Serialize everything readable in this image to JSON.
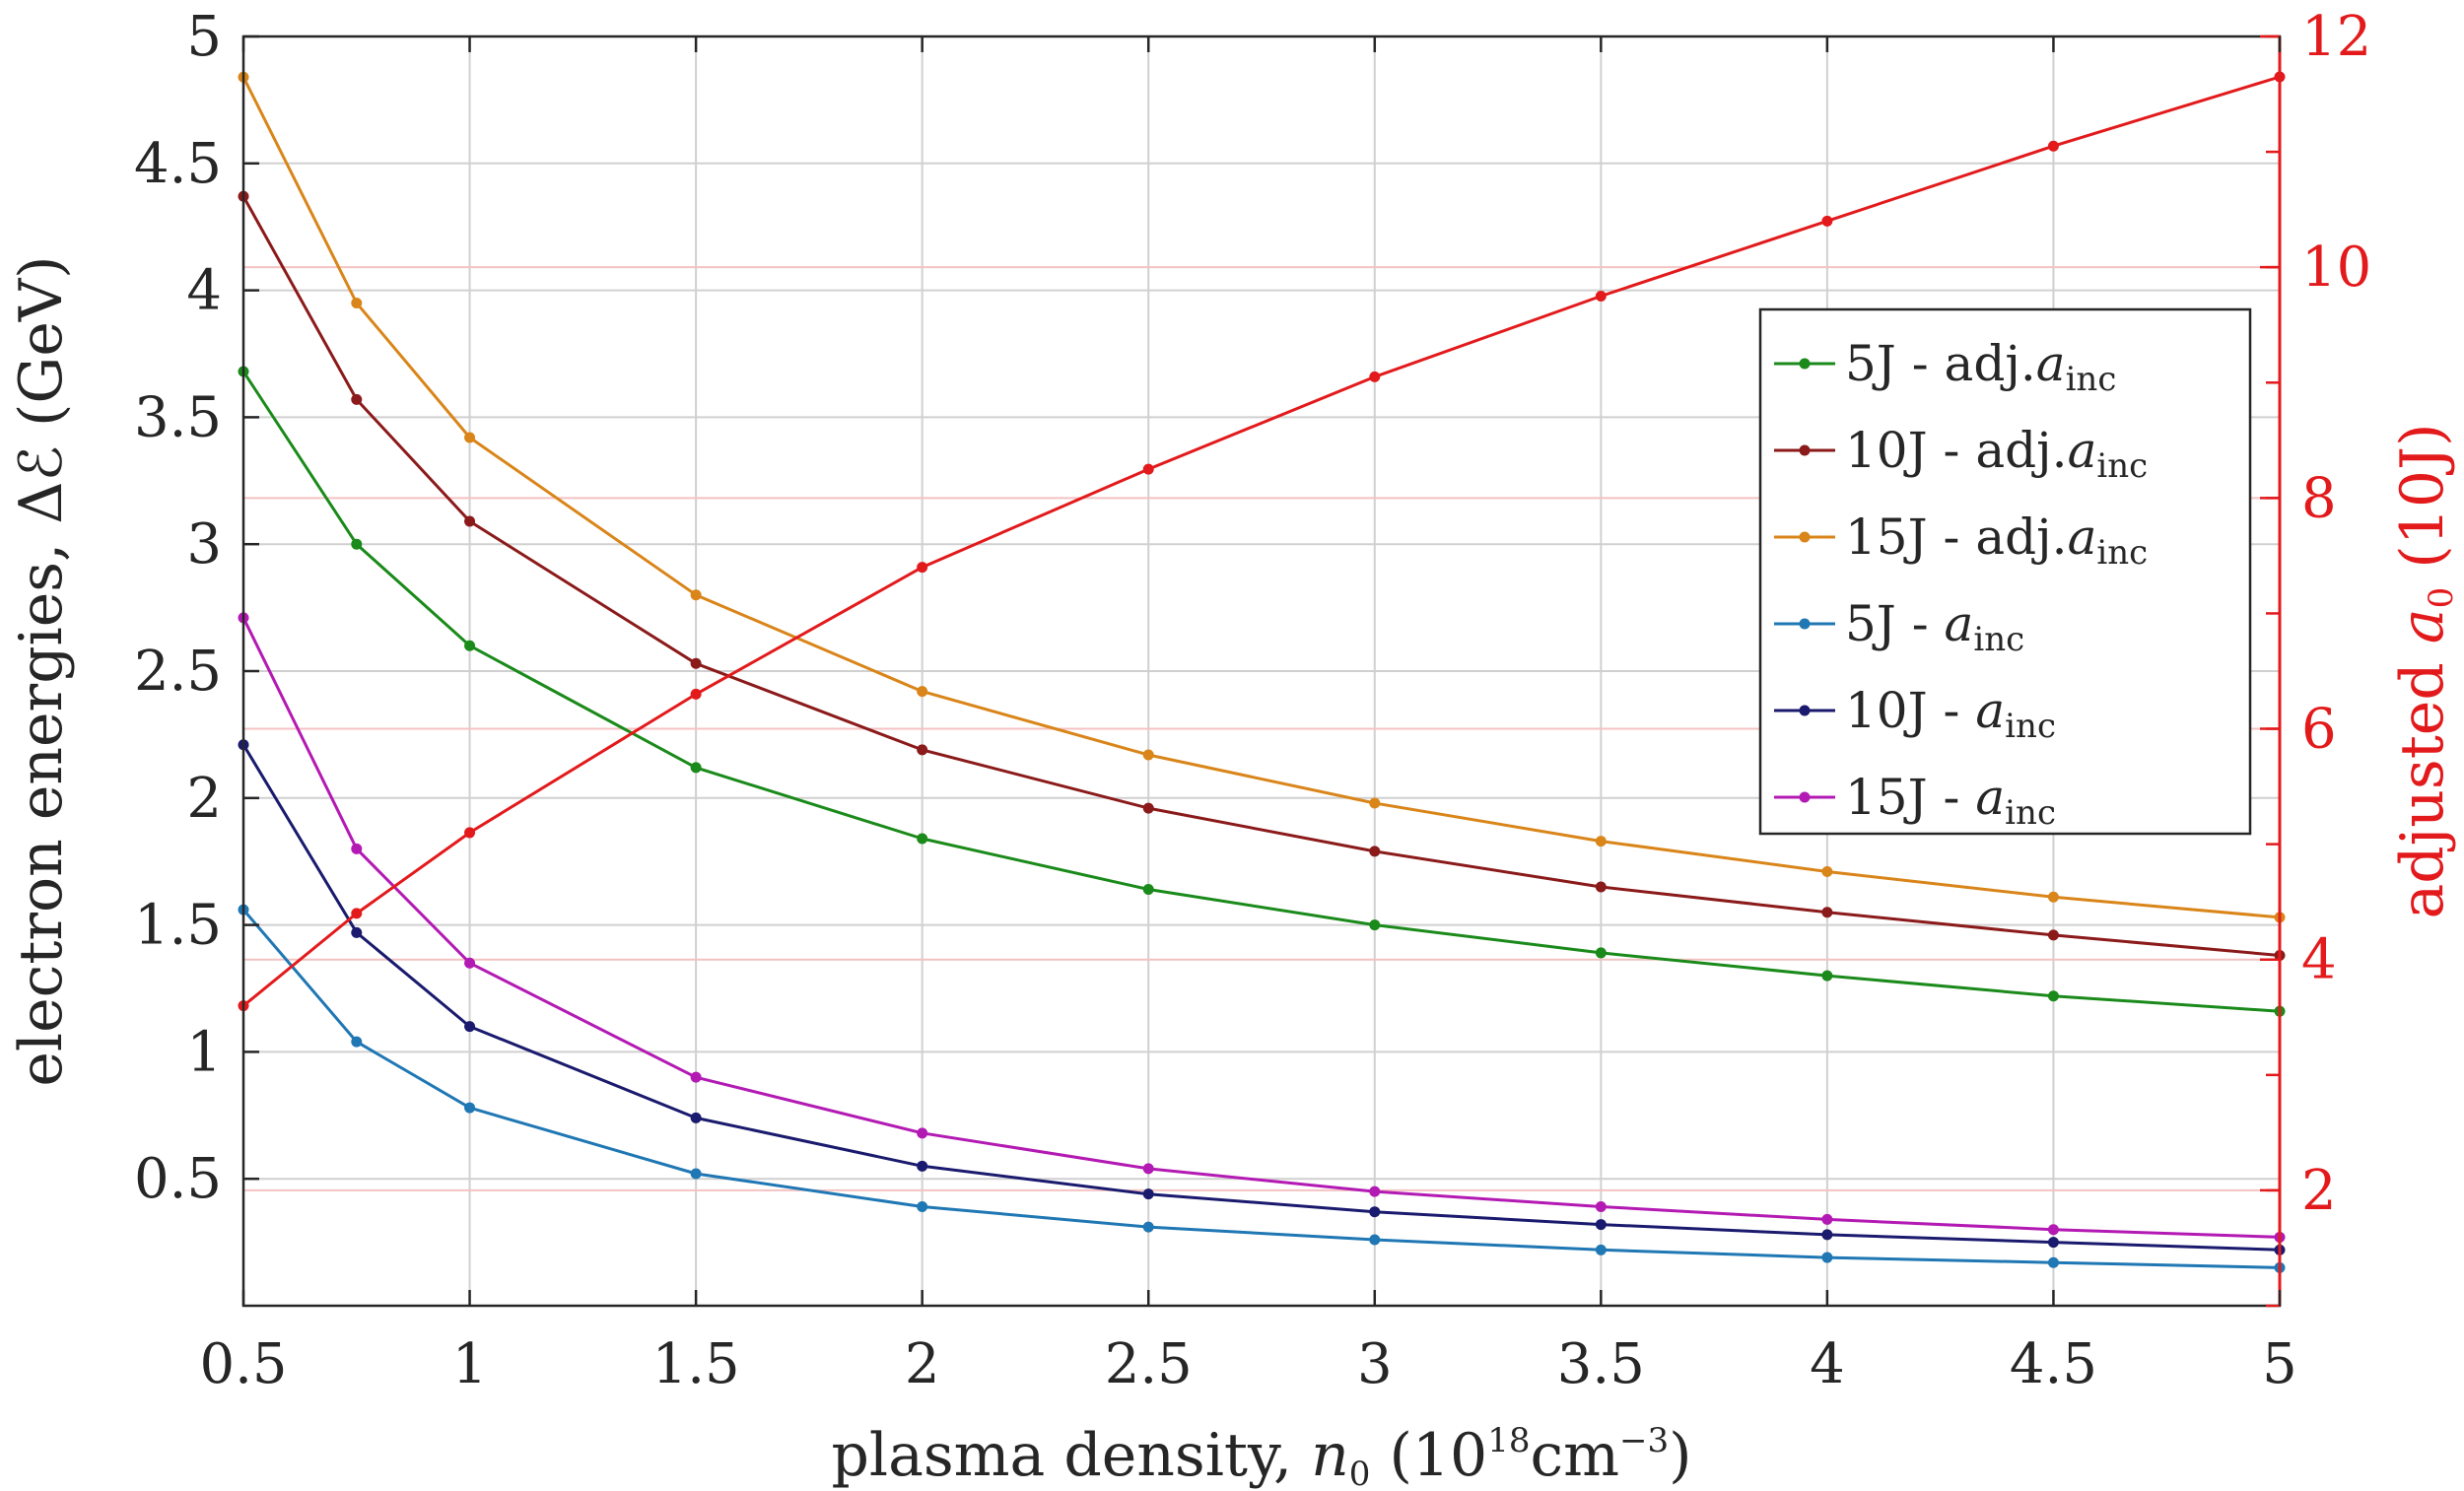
{
  "chart_data": {
    "type": "line",
    "x": [
      0.5,
      0.75,
      1,
      1.5,
      2,
      2.5,
      3,
      3.5,
      4,
      4.5,
      5
    ],
    "xlabel": {
      "main": "plasma density, ",
      "var": "n",
      "var_sub": "0",
      "unit_pre": " (10",
      "unit_sup": "18",
      "unit_mid": "cm",
      "unit_sup2": "−3",
      "unit_post": ")"
    },
    "ylabel": {
      "main": "electron energies, ",
      "symbol": "Δℰ",
      "unit": " (GeV)"
    },
    "y2label": {
      "main": "adjusted ",
      "var": "a",
      "var_sub": "0",
      "unit": " (10J)"
    },
    "xlim": [
      0.5,
      5
    ],
    "ylim": [
      0,
      5
    ],
    "y2lim": [
      1,
      12
    ],
    "xticks": [
      "0.5",
      "1",
      "1.5",
      "2",
      "2.5",
      "3",
      "3.5",
      "4",
      "4.5",
      "5"
    ],
    "yticks": [
      "0.5",
      "1",
      "1.5",
      "2",
      "2.5",
      "3",
      "3.5",
      "4",
      "4.5",
      "5"
    ],
    "y2ticks": [
      "2",
      "4",
      "6",
      "8",
      "10",
      "12"
    ],
    "grid": true,
    "legend_position": "top-right",
    "series": [
      {
        "name": "5J - adj.",
        "sym": "a",
        "sub": "inc",
        "color": "#1a8a1a",
        "axis": "left",
        "values": [
          3.68,
          3.0,
          2.6,
          2.12,
          1.84,
          1.64,
          1.5,
          1.39,
          1.3,
          1.22,
          1.16
        ]
      },
      {
        "name": "10J - adj.",
        "sym": "a",
        "sub": "inc",
        "color": "#8b1a1a",
        "axis": "left",
        "values": [
          4.37,
          3.57,
          3.09,
          2.53,
          2.19,
          1.96,
          1.79,
          1.65,
          1.55,
          1.46,
          1.38
        ]
      },
      {
        "name": "15J - adj.",
        "sym": "a",
        "sub": "inc",
        "color": "#d98519",
        "axis": "left",
        "values": [
          4.84,
          3.95,
          3.42,
          2.8,
          2.42,
          2.17,
          1.98,
          1.83,
          1.71,
          1.61,
          1.53
        ]
      },
      {
        "name": "5J - ",
        "sym": "a",
        "sub": "inc",
        "color": "#1f77b4",
        "axis": "left",
        "values": [
          1.56,
          1.04,
          0.78,
          0.52,
          0.39,
          0.31,
          0.26,
          0.22,
          0.19,
          0.17,
          0.15
        ]
      },
      {
        "name": "10J - ",
        "sym": "a",
        "sub": "inc",
        "color": "#1a1a6e",
        "axis": "left",
        "values": [
          2.21,
          1.47,
          1.1,
          0.74,
          0.55,
          0.44,
          0.37,
          0.32,
          0.28,
          0.25,
          0.22
        ]
      },
      {
        "name": "15J - ",
        "sym": "a",
        "sub": "inc",
        "color": "#b31ab3",
        "axis": "left",
        "values": [
          2.71,
          1.8,
          1.35,
          0.9,
          0.68,
          0.54,
          0.45,
          0.39,
          0.34,
          0.3,
          0.27
        ]
      },
      {
        "name": "",
        "color": "#e31a1c",
        "axis": "right",
        "in_legend": false,
        "values": [
          3.6,
          4.4,
          5.1,
          6.3,
          7.4,
          8.25,
          9.05,
          9.75,
          10.4,
          11.05,
          11.65
        ]
      }
    ]
  }
}
